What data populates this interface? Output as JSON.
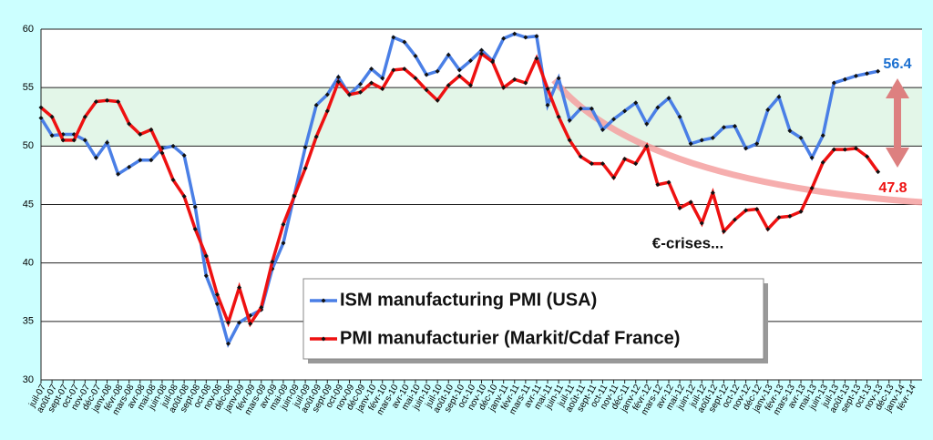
{
  "chart_data": {
    "type": "line",
    "categories": [
      "juil-07",
      "août-07",
      "sept-07",
      "oct-07",
      "nov-07",
      "déc-07",
      "janv-08",
      "févr-08",
      "mars-08",
      "avr-08",
      "mai-08",
      "juin-08",
      "juil-08",
      "août-08",
      "sept-08",
      "oct-08",
      "nov-08",
      "déc-08",
      "janv-09",
      "févr-09",
      "mars-09",
      "avr-09",
      "mai-09",
      "juin-09",
      "juil-09",
      "août-09",
      "sept-09",
      "oct-09",
      "nov-09",
      "déc-09",
      "janv-10",
      "févr-10",
      "mars-10",
      "avr-10",
      "mai-10",
      "juin-10",
      "juil-10",
      "août-10",
      "sept-10",
      "oct-10",
      "nov-10",
      "déc-10",
      "janv-11",
      "févr-11",
      "mars-11",
      "avr-11",
      "mai-11",
      "juin-11",
      "juil-11",
      "août-11",
      "sept-11",
      "oct-11",
      "nov-11",
      "déc-11",
      "janv-12",
      "févr-12",
      "mars-12",
      "avr-12",
      "mai-12",
      "juin-12",
      "juil-12",
      "août-12",
      "sept-12",
      "oct-12",
      "nov-12",
      "déc-12",
      "janv-13",
      "févr-13",
      "mars-13",
      "avr-13",
      "mai-13",
      "juin-13",
      "juil-13",
      "août-13",
      "sept-13",
      "oct-13",
      "nov-13",
      "déc-13",
      "janv-14",
      "févr-14"
    ],
    "series": [
      {
        "name": "ISM manufacturing PMI (USA)",
        "color": "#4a7fe6",
        "values": [
          52.4,
          50.9,
          51.0,
          51.0,
          50.5,
          49.0,
          50.3,
          47.6,
          48.2,
          48.8,
          48.8,
          49.8,
          50.0,
          49.2,
          44.8,
          38.9,
          36.5,
          33.1,
          34.9,
          35.5,
          36.0,
          39.5,
          41.7,
          45.8,
          49.9,
          53.5,
          54.4,
          55.9,
          54.4,
          55.3,
          56.6,
          55.8,
          59.3,
          58.9,
          57.7,
          56.1,
          56.4,
          57.8,
          56.5,
          57.3,
          58.2,
          57.3,
          59.2,
          59.6,
          59.3,
          59.4,
          53.5,
          55.8,
          52.2,
          53.2,
          53.2,
          51.4,
          52.3,
          53.0,
          53.7,
          51.9,
          53.3,
          54.1,
          52.5,
          50.2,
          50.5,
          50.7,
          51.6,
          51.7,
          49.8,
          50.2,
          53.1,
          54.2,
          51.3,
          50.7,
          49.0,
          50.9,
          55.4,
          55.7,
          56.0,
          56.2,
          56.4,
          null,
          null,
          null
        ]
      },
      {
        "name": "PMI manufacturier (Markit/Cdaf France)",
        "color": "#ee1111",
        "values": [
          53.3,
          52.5,
          50.5,
          50.5,
          52.5,
          53.8,
          53.9,
          53.8,
          51.9,
          51.0,
          51.4,
          49.4,
          47.1,
          45.7,
          42.9,
          40.6,
          37.3,
          34.9,
          37.9,
          34.8,
          36.2,
          40.1,
          43.3,
          45.7,
          48.1,
          50.8,
          53.0,
          55.5,
          54.4,
          54.6,
          55.4,
          54.9,
          56.5,
          56.6,
          55.8,
          54.8,
          53.9,
          55.2,
          56.0,
          55.2,
          57.9,
          57.2,
          55.0,
          55.7,
          55.4,
          57.5,
          54.9,
          52.5,
          50.5,
          49.1,
          48.5,
          48.5,
          47.3,
          48.9,
          48.5,
          50.0,
          46.7,
          46.9,
          44.7,
          45.2,
          43.4,
          46.0,
          42.7,
          43.7,
          44.5,
          44.6,
          42.9,
          43.9,
          44.0,
          44.4,
          46.4,
          48.6,
          49.7,
          49.7,
          49.8,
          49.1,
          47.8,
          null,
          null,
          null
        ]
      }
    ],
    "ylim": [
      30,
      60
    ],
    "yticks": [
      30,
      35,
      40,
      45,
      50,
      55,
      60
    ],
    "grid": true,
    "highlight_band": [
      50,
      55
    ],
    "annotations": [
      {
        "text": "56.4",
        "color": "#1a6fd0"
      },
      {
        "text": "47.8",
        "color": "#ee1111"
      },
      {
        "text": "€-crises..."
      }
    ],
    "legend": "center"
  }
}
